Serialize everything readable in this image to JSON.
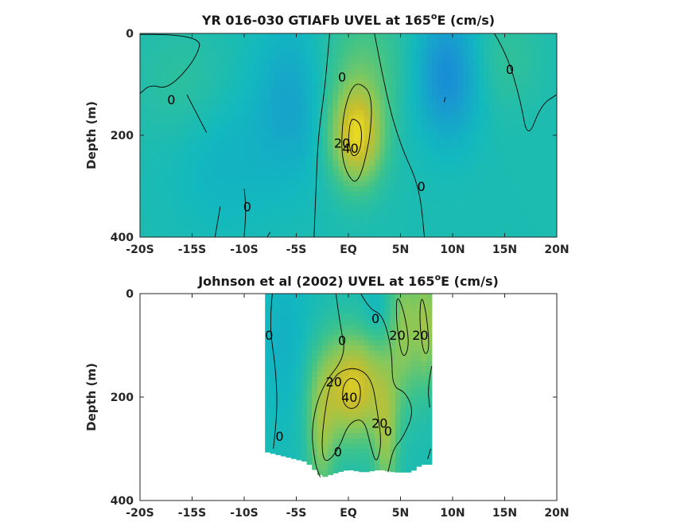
{
  "chart_data": [
    {
      "type": "heatmap",
      "title_main": "YR 016-030 GTIAFb UVEL at 165",
      "title_sup": "o",
      "title_end": "E (cm/s)",
      "ylabel": "Depth (m)",
      "xlabel": "",
      "xlim": [
        -20,
        20
      ],
      "ylim": [
        0,
        400
      ],
      "y_reversed": true,
      "x_ticks": [
        {
          "value": -20,
          "label": "-20S"
        },
        {
          "value": -15,
          "label": "-15S"
        },
        {
          "value": -10,
          "label": "-10S"
        },
        {
          "value": -5,
          "label": "-5S"
        },
        {
          "value": 0,
          "label": "EQ"
        },
        {
          "value": 5,
          "label": "5N"
        },
        {
          "value": 10,
          "label": "10N"
        },
        {
          "value": 15,
          "label": "15N"
        },
        {
          "value": 20,
          "label": "20N"
        }
      ],
      "y_ticks": [
        {
          "value": 0,
          "label": "0"
        },
        {
          "value": 200,
          "label": "200"
        },
        {
          "value": 400,
          "label": "400"
        }
      ],
      "data_extent": {
        "lat_min": -20,
        "lat_max": 20,
        "depth_max": 400
      },
      "features": [
        {
          "lat": 0.8,
          "depth": 200,
          "lat_sigma": 1.7,
          "depth_sigma": 65,
          "value": 45
        },
        {
          "lat": 1.5,
          "depth": 60,
          "lat_sigma": 2.8,
          "depth_sigma": 80,
          "value": 12
        },
        {
          "lat": 9.5,
          "depth": 80,
          "lat_sigma": 2.2,
          "depth_sigma": 90,
          "value": -18
        },
        {
          "lat": -5.5,
          "depth": 130,
          "lat_sigma": 2.5,
          "depth_sigma": 110,
          "value": -10
        },
        {
          "lat": -16,
          "depth": 100,
          "lat_sigma": 3.0,
          "depth_sigma": 80,
          "value": 5
        },
        {
          "lat": 15,
          "depth": 50,
          "lat_sigma": 2.5,
          "depth_sigma": 70,
          "value": 6
        },
        {
          "lat": -12,
          "depth": 250,
          "lat_sigma": 3.5,
          "depth_sigma": 100,
          "value": -5
        }
      ],
      "contour_labels": [
        {
          "text": "0",
          "lat": -17,
          "depth": 130
        },
        {
          "text": "0",
          "lat": -0.6,
          "depth": 85
        },
        {
          "text": "0",
          "lat": 15.5,
          "depth": 70
        },
        {
          "text": "20",
          "lat": -0.6,
          "depth": 215
        },
        {
          "text": "40",
          "lat": 0.2,
          "depth": 225
        },
        {
          "text": "0",
          "lat": 7,
          "depth": 300
        },
        {
          "text": "0",
          "lat": -9.7,
          "depth": 340
        }
      ],
      "contours": [
        {
          "level": 40,
          "points": [
            [
              0.4,
              165
            ],
            [
              1.3,
              180
            ],
            [
              1.2,
              230
            ],
            [
              0.4,
              245
            ],
            [
              0.0,
              215
            ],
            [
              0.1,
              180
            ]
          ],
          "closed": true
        },
        {
          "level": 20,
          "points": [
            [
              1.0,
              95
            ],
            [
              2.3,
              120
            ],
            [
              2.1,
              210
            ],
            [
              0.9,
              300
            ],
            [
              -0.2,
              275
            ],
            [
              -0.7,
              230
            ],
            [
              -0.5,
              160
            ],
            [
              0.2,
              110
            ]
          ],
          "closed": true
        },
        {
          "level": 0,
          "points": [
            [
              -1.8,
              0
            ],
            [
              -2.2,
              100
            ],
            [
              -2.9,
              200
            ],
            [
              -3.1,
              300
            ],
            [
              -3.3,
              400
            ]
          ],
          "closed": false
        },
        {
          "level": 0,
          "points": [
            [
              2.5,
              0
            ],
            [
              3.6,
              120
            ],
            [
              5.0,
              220
            ],
            [
              6.8,
              300
            ],
            [
              7.3,
              400
            ]
          ],
          "closed": false
        },
        {
          "level": 0,
          "points": [
            [
              -20,
              2
            ],
            [
              -14,
              0
            ],
            [
              -14.6,
              50
            ],
            [
              -17.3,
              110
            ],
            [
              -19,
              100
            ],
            [
              -20,
              118
            ]
          ],
          "closed": false
        },
        {
          "level": 0,
          "points": [
            [
              -15.5,
              120
            ],
            [
              -14.5,
              160
            ],
            [
              -13.6,
              195
            ]
          ],
          "closed": false
        },
        {
          "level": 0,
          "points": [
            [
              14,
              0
            ],
            [
              15.2,
              40
            ],
            [
              16.5,
              130
            ],
            [
              17.2,
              210
            ],
            [
              18.5,
              140
            ],
            [
              20,
              120
            ]
          ],
          "closed": false
        },
        {
          "level": 0,
          "points": [
            [
              -10,
              305
            ],
            [
              -9.8,
              340
            ],
            [
              -10,
              400
            ]
          ],
          "closed": false
        },
        {
          "level": 0,
          "points": [
            [
              -12.3,
              340
            ],
            [
              -12.8,
              400
            ]
          ],
          "closed": false
        },
        {
          "level": 0,
          "points": [
            [
              -7.5,
              390
            ],
            [
              -7.8,
              400
            ]
          ],
          "closed": false
        },
        {
          "level": 0,
          "points": [
            [
              9.3,
              125
            ],
            [
              9.2,
              135
            ]
          ],
          "closed": false
        }
      ]
    },
    {
      "type": "heatmap",
      "title_main": "Johnson et al (2002) UVEL at 165",
      "title_sup": "o",
      "title_end": "E (cm/s)",
      "ylabel": "Depth (m)",
      "xlabel": "",
      "xlim": [
        -20,
        20
      ],
      "ylim": [
        0,
        400
      ],
      "y_reversed": true,
      "x_ticks": [
        {
          "value": -20,
          "label": "-20S"
        },
        {
          "value": -15,
          "label": "-15S"
        },
        {
          "value": -10,
          "label": "-10S"
        },
        {
          "value": -5,
          "label": "-5S"
        },
        {
          "value": 0,
          "label": "EQ"
        },
        {
          "value": 5,
          "label": "5N"
        },
        {
          "value": 10,
          "label": "10N"
        },
        {
          "value": 15,
          "label": "15N"
        },
        {
          "value": 20,
          "label": "20N"
        }
      ],
      "y_ticks": [
        {
          "value": 0,
          "label": "0"
        },
        {
          "value": 200,
          "label": "200"
        },
        {
          "value": 400,
          "label": "400"
        }
      ],
      "data_extent": {
        "lat_min": -8,
        "lat_max": 8,
        "bottom_profile": [
          [
            -8,
            305
          ],
          [
            -6,
            315
          ],
          [
            -4,
            325
          ],
          [
            -2.5,
            355
          ],
          [
            -1,
            345
          ],
          [
            0,
            340
          ],
          [
            1.5,
            345
          ],
          [
            3,
            340
          ],
          [
            4.5,
            345
          ],
          [
            6,
            345
          ],
          [
            7,
            330
          ],
          [
            8,
            330
          ]
        ]
      },
      "features": [
        {
          "lat": 0.4,
          "depth": 180,
          "lat_sigma": 2.3,
          "depth_sigma": 70,
          "value": 42
        },
        {
          "lat": 5.5,
          "depth": 60,
          "lat_sigma": 1.2,
          "depth_sigma": 90,
          "value": 24
        },
        {
          "lat": 7.6,
          "depth": 60,
          "lat_sigma": 0.7,
          "depth_sigma": 80,
          "value": 22
        },
        {
          "lat": -2.6,
          "depth": 280,
          "lat_sigma": 0.9,
          "depth_sigma": 80,
          "value": 20
        },
        {
          "lat": 3.6,
          "depth": 280,
          "lat_sigma": 0.8,
          "depth_sigma": 80,
          "value": 22
        },
        {
          "lat": -6,
          "depth": 100,
          "lat_sigma": 1.8,
          "depth_sigma": 120,
          "value": -6
        },
        {
          "lat": 3,
          "depth": 40,
          "lat_sigma": 1.2,
          "depth_sigma": 40,
          "value": -6
        }
      ],
      "contour_labels": [
        {
          "text": "0",
          "lat": -7.6,
          "depth": 80
        },
        {
          "text": "0",
          "lat": -0.6,
          "depth": 90
        },
        {
          "text": "0",
          "lat": 2.6,
          "depth": 48
        },
        {
          "text": "20",
          "lat": 4.7,
          "depth": 80
        },
        {
          "text": "20",
          "lat": 6.9,
          "depth": 80
        },
        {
          "text": "20",
          "lat": -1.4,
          "depth": 170
        },
        {
          "text": "40",
          "lat": 0.1,
          "depth": 200
        },
        {
          "text": "20",
          "lat": 3.0,
          "depth": 250
        },
        {
          "text": "0",
          "lat": -6.6,
          "depth": 275
        },
        {
          "text": "0",
          "lat": 3.8,
          "depth": 265
        },
        {
          "text": "0",
          "lat": -1.0,
          "depth": 305
        }
      ],
      "contours": [
        {
          "level": 40,
          "points": [
            [
              0.3,
              160
            ],
            [
              1.2,
              175
            ],
            [
              1.1,
              215
            ],
            [
              0.2,
              225
            ],
            [
              -0.6,
              210
            ],
            [
              -0.5,
              175
            ]
          ],
          "closed": true
        },
        {
          "level": 20,
          "points": [
            [
              0.4,
              140
            ],
            [
              2.2,
              160
            ],
            [
              2.8,
              230
            ],
            [
              3.2,
              290
            ],
            [
              2.7,
              330
            ],
            [
              2.2,
              300
            ],
            [
              1.5,
              240
            ],
            [
              0.0,
              250
            ],
            [
              -0.9,
              300
            ],
            [
              -2.2,
              330
            ],
            [
              -2.6,
              300
            ],
            [
              -2.3,
              230
            ],
            [
              -1.6,
              160
            ]
          ],
          "closed": true
        },
        {
          "level": 20,
          "points": [
            [
              4.6,
              0
            ],
            [
              5.3,
              30
            ],
            [
              5.9,
              100
            ],
            [
              5.2,
              130
            ],
            [
              4.6,
              60
            ]
          ],
          "closed": true
        },
        {
          "level": 20,
          "points": [
            [
              7.0,
              0
            ],
            [
              7.5,
              40
            ],
            [
              7.8,
              110
            ],
            [
              7.2,
              120
            ],
            [
              6.8,
              50
            ]
          ],
          "closed": true
        },
        {
          "level": 0,
          "points": [
            [
              -1.2,
              0
            ],
            [
              -0.8,
              60
            ],
            [
              -0.2,
              120
            ],
            [
              -2.6,
              180
            ],
            [
              -3.6,
              260
            ],
            [
              -3.2,
              330
            ],
            [
              -2.7,
              355
            ]
          ],
          "closed": false
        },
        {
          "level": 0,
          "points": [
            [
              1.2,
              0
            ],
            [
              2.0,
              30
            ],
            [
              3.3,
              40
            ],
            [
              4.2,
              110
            ],
            [
              4.2,
              180
            ],
            [
              5.5,
              190
            ],
            [
              6.3,
              230
            ],
            [
              5.2,
              280
            ],
            [
              4.3,
              300
            ],
            [
              3.8,
              345
            ]
          ],
          "closed": false
        },
        {
          "level": 0,
          "points": [
            [
              -7.3,
              0
            ],
            [
              -7.6,
              60
            ],
            [
              -7.0,
              140
            ],
            [
              -6.8,
              220
            ],
            [
              -7.2,
              300
            ]
          ],
          "closed": false
        },
        {
          "level": 0,
          "points": [
            [
              8.0,
              140
            ],
            [
              7.6,
              180
            ],
            [
              7.8,
              220
            ]
          ],
          "closed": false
        },
        {
          "level": 0,
          "points": [
            [
              7.9,
              300
            ],
            [
              7.6,
              320
            ]
          ],
          "closed": false
        }
      ]
    }
  ]
}
